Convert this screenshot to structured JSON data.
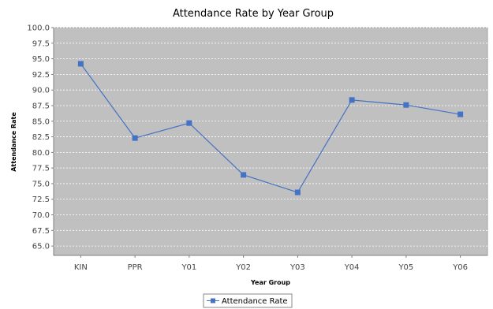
{
  "chart_data": {
    "type": "line",
    "title": "Attendance Rate by Year Group",
    "xlabel": "Year Group",
    "ylabel": "Attendance Rate",
    "categories": [
      "KIN",
      "PPR",
      "Y01",
      "Y02",
      "Y03",
      "Y04",
      "Y05",
      "Y06"
    ],
    "series": [
      {
        "name": "Attendance Rate",
        "values": [
          94.2,
          82.3,
          84.7,
          76.4,
          73.6,
          88.4,
          87.6,
          86.1
        ],
        "color": "#4472c4"
      }
    ],
    "ylim": [
      63.5,
      100.0
    ],
    "yticks": [
      "100.0",
      "97.5",
      "95.0",
      "92.5",
      "90.0",
      "87.5",
      "85.0",
      "82.5",
      "80.0",
      "77.5",
      "75.0",
      "72.5",
      "70.0",
      "67.5",
      "65.0"
    ],
    "grid": true,
    "legend_position": "bottom-center",
    "plot_background": "#c0c0c0"
  }
}
